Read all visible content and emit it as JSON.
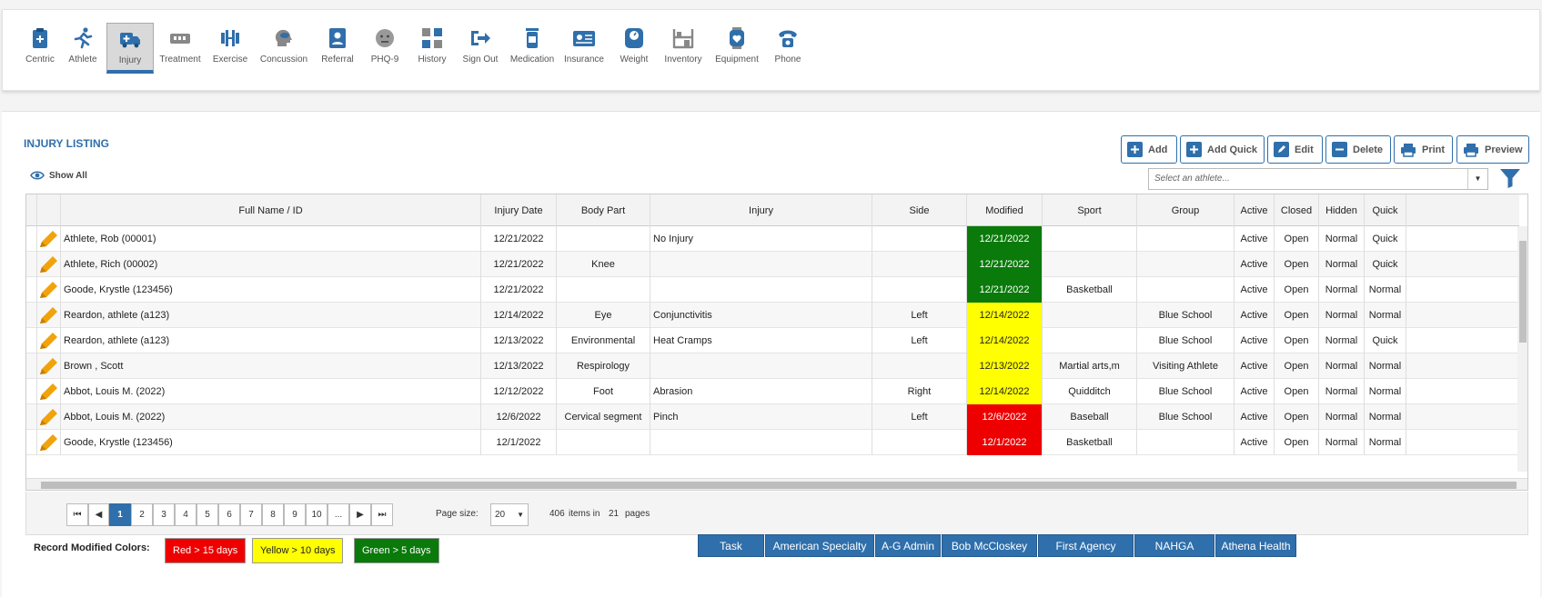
{
  "nav": [
    {
      "label": "Centric",
      "icon": "clipboard-icon"
    },
    {
      "label": "Athlete",
      "icon": "runner-icon"
    },
    {
      "label": "Injury",
      "icon": "ambulance-icon"
    },
    {
      "label": "Treatment",
      "icon": "treatment-icon"
    },
    {
      "label": "Exercise",
      "icon": "dumbbell-icon"
    },
    {
      "label": "Concussion",
      "icon": "head-icon"
    },
    {
      "label": "Referral",
      "icon": "referral-icon"
    },
    {
      "label": "PHQ-9",
      "icon": "face-icon"
    },
    {
      "label": "History",
      "icon": "history-icon"
    },
    {
      "label": "Sign Out",
      "icon": "sign-out-icon"
    },
    {
      "label": "Medication",
      "icon": "medication-icon"
    },
    {
      "label": "Insurance",
      "icon": "insurance-card-icon"
    },
    {
      "label": "Weight",
      "icon": "scale-icon"
    },
    {
      "label": "Inventory",
      "icon": "inventory-icon"
    },
    {
      "label": "Equipment",
      "icon": "equipment-icon"
    },
    {
      "label": "Phone",
      "icon": "phone-icon"
    }
  ],
  "page": {
    "title": "INJURY LISTING",
    "show_all": "Show All"
  },
  "toolbar": {
    "add": "Add",
    "add_quick": "Add Quick",
    "edit": "Edit",
    "delete": "Delete",
    "print": "Print",
    "preview": "Preview"
  },
  "athlete_select": {
    "placeholder": "Select an athlete..."
  },
  "table": {
    "columns": [
      "Full Name / ID",
      "Injury Date",
      "Body Part",
      "Injury",
      "Side",
      "Modified",
      "Sport",
      "Group",
      "Active",
      "Closed",
      "Hidden",
      "Quick"
    ],
    "rows": [
      [
        "Athlete, Rob (00001)",
        "12/21/2022",
        "",
        "No Injury",
        "",
        "12/21/2022",
        "",
        "",
        "Active",
        "Open",
        "Normal",
        "Quick"
      ],
      [
        "Athlete, Rich (00002)",
        "12/21/2022",
        "Knee",
        "",
        "",
        "12/21/2022",
        "",
        "",
        "Active",
        "Open",
        "Normal",
        "Quick"
      ],
      [
        "Goode, Krystle (123456)",
        "12/21/2022",
        "",
        "",
        "",
        "12/21/2022",
        "Basketball",
        "",
        "Active",
        "Open",
        "Normal",
        "Normal"
      ],
      [
        "Reardon, athlete (a123)",
        "12/14/2022",
        "Eye",
        "Conjunctivitis",
        "Left",
        "12/14/2022",
        "",
        "Blue School",
        "Active",
        "Open",
        "Normal",
        "Normal"
      ],
      [
        "Reardon, athlete (a123)",
        "12/13/2022",
        "Environmental",
        "Heat Cramps",
        "Left",
        "12/14/2022",
        "",
        "Blue School",
        "Active",
        "Open",
        "Normal",
        "Quick"
      ],
      [
        "Brown , Scott",
        "12/13/2022",
        "Respirology",
        "",
        "",
        "12/13/2022",
        "Martial arts,m",
        "Visiting Athlete",
        "Active",
        "Open",
        "Normal",
        "Normal"
      ],
      [
        "Abbot, Louis M. (2022)",
        "12/12/2022",
        "Foot",
        "Abrasion",
        "Right",
        "12/14/2022",
        "Quidditch",
        "Blue School",
        "Active",
        "Open",
        "Normal",
        "Normal"
      ],
      [
        "Abbot, Louis M. (2022)",
        "12/6/2022",
        "Cervical segment",
        "Pinch",
        "Left",
        "12/6/2022",
        "Baseball",
        "Blue School",
        "Active",
        "Open",
        "Normal",
        "Normal"
      ],
      [
        "Goode, Krystle (123456)",
        "12/1/2022",
        "",
        "",
        "",
        "12/1/2022",
        "Basketball",
        "",
        "Active",
        "Open",
        "Normal",
        "Normal"
      ]
    ],
    "modified_status": [
      "green",
      "green",
      "green",
      "yellow",
      "yellow",
      "yellow",
      "yellow",
      "red",
      "red"
    ]
  },
  "pager": {
    "first": "⏮",
    "prev": "◀",
    "pages": [
      "1",
      "2",
      "3",
      "4",
      "5",
      "6",
      "7",
      "8",
      "9",
      "10",
      "..."
    ],
    "next": "▶",
    "last": "⏭",
    "current": "1",
    "page_size_label": "Page size:",
    "page_size": "20",
    "items": "406",
    "items_in": "items in",
    "pages_count": "21",
    "pages_label": "pages"
  },
  "legend": {
    "label": "Record Modified Colors:",
    "red": "Red > 15 days",
    "yellow": "Yellow > 10 days",
    "green": "Green > 5 days"
  },
  "footer_tabs": [
    "Task",
    "American Specialty",
    "A-G Admin",
    "Bob McCloskey",
    "First Agency",
    "NAHGA",
    "Athena Health"
  ],
  "colors": {
    "accent": "#2f6fab",
    "red": "#ee0000",
    "yellow": "#ffff00",
    "green": "#0a7a0a",
    "edit_pencil": "#f0a30a"
  }
}
